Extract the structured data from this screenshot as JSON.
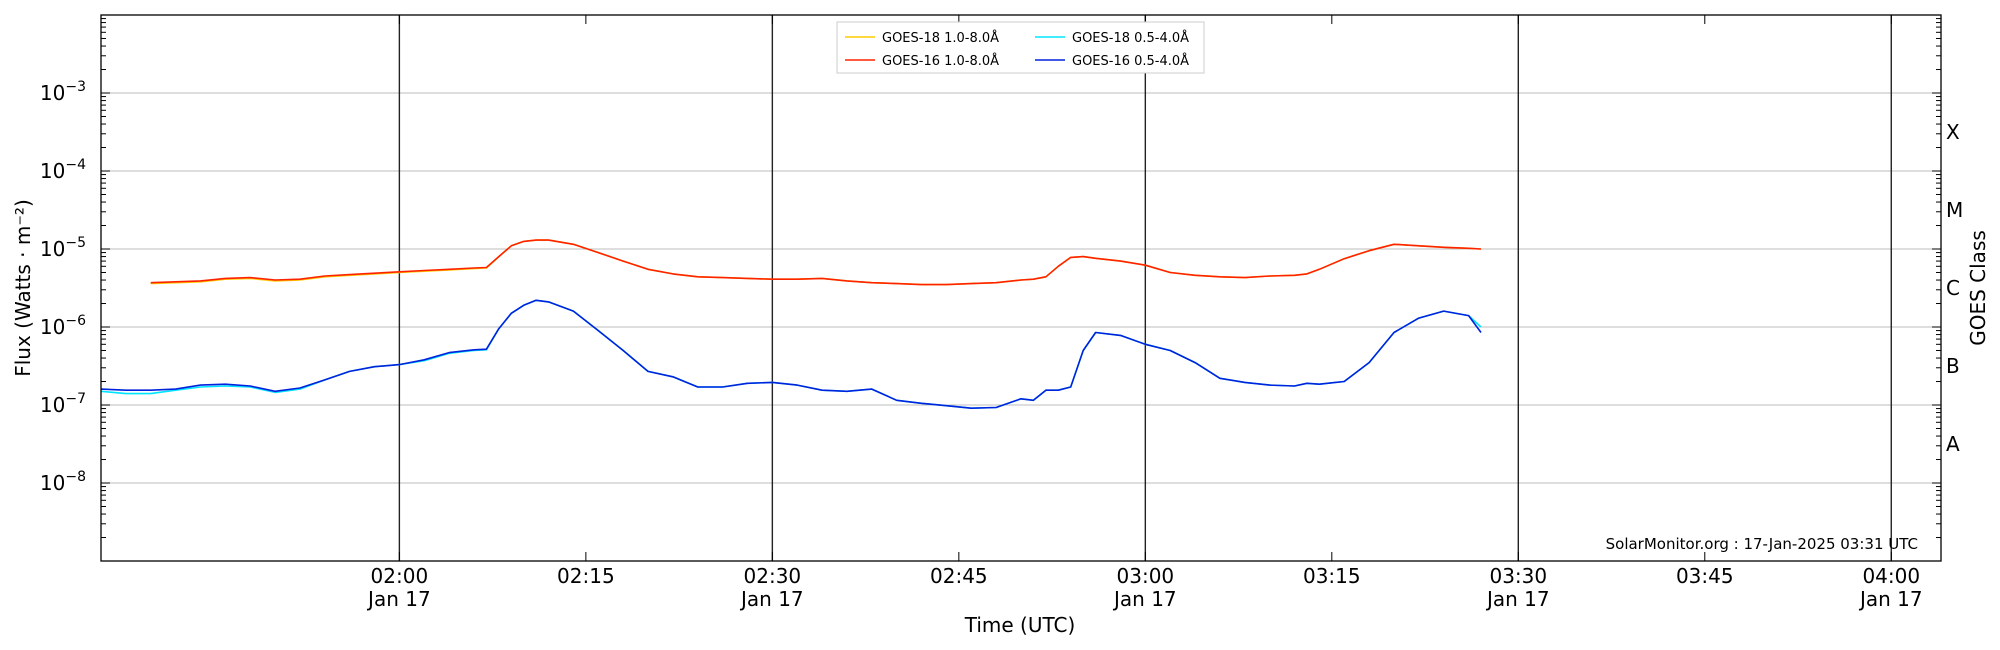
{
  "chart_data": {
    "type": "line",
    "xlabel": "Time (UTC)",
    "ylabel": "Flux (Watts · m⁻²)",
    "y2label": "GOES Class",
    "x_range": [
      "01:36",
      "04:04"
    ],
    "y_scale": "log",
    "ylim": [
      1e-09,
      0.01
    ],
    "grid": "horizontal at each decade",
    "legend_position": "top-center",
    "credit": "SolarMonitor.org : 17-Jan-2025 03:31 UTC",
    "x_ticks": [
      {
        "t": "02:00",
        "label": "02:00",
        "date": "Jan 17",
        "vline": true
      },
      {
        "t": "02:15",
        "label": "02:15",
        "date": "",
        "vline": false
      },
      {
        "t": "02:30",
        "label": "02:30",
        "date": "Jan 17",
        "vline": true
      },
      {
        "t": "02:45",
        "label": "02:45",
        "date": "",
        "vline": false
      },
      {
        "t": "03:00",
        "label": "03:00",
        "date": "Jan 17",
        "vline": true
      },
      {
        "t": "03:15",
        "label": "03:15",
        "date": "",
        "vline": false
      },
      {
        "t": "03:30",
        "label": "03:30",
        "date": "Jan 17",
        "vline": true
      },
      {
        "t": "03:45",
        "label": "03:45",
        "date": "",
        "vline": false
      },
      {
        "t": "04:00",
        "label": "04:00",
        "date": "Jan 17",
        "vline": true
      }
    ],
    "y_ticks": [
      {
        "exp": -8,
        "label": "10",
        "sup": "−8"
      },
      {
        "exp": -7,
        "label": "10",
        "sup": "−7"
      },
      {
        "exp": -6,
        "label": "10",
        "sup": "−6"
      },
      {
        "exp": -5,
        "label": "10",
        "sup": "−5"
      },
      {
        "exp": -4,
        "label": "10",
        "sup": "−4"
      },
      {
        "exp": -3,
        "label": "10",
        "sup": "−3"
      }
    ],
    "goes_classes": [
      {
        "label": "A",
        "exp": -7.5
      },
      {
        "label": "B",
        "exp": -6.5
      },
      {
        "label": "C",
        "exp": -5.5
      },
      {
        "label": "M",
        "exp": -4.5
      },
      {
        "label": "X",
        "exp": -3.5
      }
    ],
    "series": [
      {
        "name": "GOES-18 1.0-8.0Å",
        "color": "#ffcc00",
        "x": [
          "01:40",
          "01:42",
          "01:44",
          "01:46",
          "01:48",
          "01:50",
          "01:52",
          "01:54",
          "01:56",
          "01:58",
          "02:00",
          "02:02",
          "02:04",
          "02:06",
          "02:07",
          "02:08",
          "02:09",
          "02:10",
          "02:11",
          "02:12",
          "02:14",
          "02:16",
          "02:18",
          "02:20",
          "02:22",
          "02:24",
          "02:26",
          "02:28",
          "02:30",
          "02:32",
          "02:34",
          "02:36",
          "02:38",
          "02:40",
          "02:42",
          "02:44",
          "02:46",
          "02:48",
          "02:50",
          "02:51",
          "02:52",
          "02:53",
          "02:54",
          "02:55",
          "02:56",
          "02:58",
          "03:00",
          "03:02",
          "03:04",
          "03:06",
          "03:08",
          "03:10",
          "03:12",
          "03:13",
          "03:14",
          "03:16",
          "03:18",
          "03:20",
          "03:22",
          "03:24",
          "03:26",
          "03:27"
        ],
        "y": [
          3.6e-06,
          3.7e-06,
          3.8e-06,
          4.1e-06,
          4.2e-06,
          3.9e-06,
          4e-06,
          4.4e-06,
          4.6e-06,
          4.8e-06,
          5e-06,
          5.2e-06,
          5.4e-06,
          5.6e-06,
          5.7e-06,
          8e-06,
          1.1e-05,
          1.25e-05,
          1.3e-05,
          1.3e-05,
          1.15e-05,
          9e-06,
          7e-06,
          5.5e-06,
          4.8e-06,
          4.4e-06,
          4.3e-06,
          4.2e-06,
          4.1e-06,
          4.1e-06,
          4.2e-06,
          3.9e-06,
          3.7e-06,
          3.6e-06,
          3.5e-06,
          3.5e-06,
          3.6e-06,
          3.7e-06,
          4e-06,
          4.1e-06,
          4.4e-06,
          6e-06,
          7.8e-06,
          8e-06,
          7.6e-06,
          7e-06,
          6.2e-06,
          5e-06,
          4.6e-06,
          4.4e-06,
          4.3e-06,
          4.5e-06,
          4.6e-06,
          4.8e-06,
          5.5e-06,
          7.5e-06,
          9.5e-06,
          1.15e-05,
          1.1e-05,
          1.05e-05,
          1.02e-05,
          1e-05
        ]
      },
      {
        "name": "GOES-16 1.0-8.0Å",
        "color": "#ff2200",
        "x": [
          "01:40",
          "01:42",
          "01:44",
          "01:46",
          "01:48",
          "01:50",
          "01:52",
          "01:54",
          "01:56",
          "01:58",
          "02:00",
          "02:02",
          "02:04",
          "02:06",
          "02:07",
          "02:08",
          "02:09",
          "02:10",
          "02:11",
          "02:12",
          "02:14",
          "02:16",
          "02:18",
          "02:20",
          "02:22",
          "02:24",
          "02:26",
          "02:28",
          "02:30",
          "02:32",
          "02:34",
          "02:36",
          "02:38",
          "02:40",
          "02:42",
          "02:44",
          "02:46",
          "02:48",
          "02:50",
          "02:51",
          "02:52",
          "02:53",
          "02:54",
          "02:55",
          "02:56",
          "02:58",
          "03:00",
          "03:02",
          "03:04",
          "03:06",
          "03:08",
          "03:10",
          "03:12",
          "03:13",
          "03:14",
          "03:16",
          "03:18",
          "03:20",
          "03:22",
          "03:24",
          "03:26",
          "03:27"
        ],
        "y": [
          3.7e-06,
          3.8e-06,
          3.9e-06,
          4.2e-06,
          4.3e-06,
          4e-06,
          4.1e-06,
          4.5e-06,
          4.7e-06,
          4.9e-06,
          5.1e-06,
          5.3e-06,
          5.5e-06,
          5.7e-06,
          5.8e-06,
          8e-06,
          1.1e-05,
          1.25e-05,
          1.3e-05,
          1.3e-05,
          1.15e-05,
          9e-06,
          7e-06,
          5.5e-06,
          4.8e-06,
          4.4e-06,
          4.3e-06,
          4.2e-06,
          4.1e-06,
          4.1e-06,
          4.2e-06,
          3.9e-06,
          3.7e-06,
          3.6e-06,
          3.5e-06,
          3.5e-06,
          3.6e-06,
          3.7e-06,
          4e-06,
          4.1e-06,
          4.4e-06,
          6e-06,
          7.8e-06,
          8e-06,
          7.6e-06,
          7e-06,
          6.2e-06,
          5e-06,
          4.6e-06,
          4.4e-06,
          4.3e-06,
          4.5e-06,
          4.6e-06,
          4.8e-06,
          5.5e-06,
          7.5e-06,
          9.5e-06,
          1.15e-05,
          1.1e-05,
          1.05e-05,
          1.02e-05,
          1e-05
        ]
      },
      {
        "name": "GOES-18 0.5-4.0Å",
        "color": "#00e5ff",
        "x": [
          "01:36",
          "01:38",
          "01:40",
          "01:42",
          "01:44",
          "01:46",
          "01:48",
          "01:50",
          "01:52",
          "01:54",
          "01:56",
          "01:58",
          "02:00",
          "02:02",
          "02:04",
          "02:06",
          "02:07",
          "02:08",
          "02:09",
          "02:10",
          "02:11",
          "02:12",
          "02:14",
          "02:16",
          "02:18",
          "02:20",
          "02:22",
          "02:24",
          "02:26",
          "02:28",
          "02:30",
          "02:32",
          "02:34",
          "02:36",
          "02:38",
          "02:40",
          "02:42",
          "02:44",
          "02:46",
          "02:48",
          "02:50",
          "02:51",
          "02:52",
          "02:53",
          "02:54",
          "02:55",
          "02:56",
          "02:58",
          "03:00",
          "03:02",
          "03:04",
          "03:06",
          "03:08",
          "03:10",
          "03:12",
          "03:13",
          "03:14",
          "03:16",
          "03:18",
          "03:20",
          "03:22",
          "03:24",
          "03:26",
          "03:27"
        ],
        "y": [
          1.5e-07,
          1.4e-07,
          1.4e-07,
          1.55e-07,
          1.7e-07,
          1.75e-07,
          1.7e-07,
          1.45e-07,
          1.6e-07,
          2.1e-07,
          2.7e-07,
          3.1e-07,
          3.3e-07,
          3.7e-07,
          4.6e-07,
          5e-07,
          5.1e-07,
          9.5e-07,
          1.5e-06,
          1.9e-06,
          2.2e-06,
          2.1e-06,
          1.6e-06,
          9e-07,
          5e-07,
          2.7e-07,
          2.3e-07,
          1.7e-07,
          1.7e-07,
          1.9e-07,
          1.95e-07,
          1.8e-07,
          1.55e-07,
          1.5e-07,
          1.6e-07,
          1.15e-07,
          1.05e-07,
          9.8e-08,
          9.1e-08,
          9.3e-08,
          1.2e-07,
          1.15e-07,
          1.55e-07,
          1.55e-07,
          1.7e-07,
          5e-07,
          8.5e-07,
          7.8e-07,
          6e-07,
          5e-07,
          3.5e-07,
          2.2e-07,
          1.95e-07,
          1.8e-07,
          1.75e-07,
          1.9e-07,
          1.85e-07,
          2e-07,
          3.5e-07,
          8.5e-07,
          1.3e-06,
          1.6e-06,
          1.4e-06,
          1e-06
        ]
      },
      {
        "name": "GOES-16 0.5-4.0Å",
        "color": "#0022dd",
        "x": [
          "01:36",
          "01:38",
          "01:40",
          "01:42",
          "01:44",
          "01:46",
          "01:48",
          "01:50",
          "01:52",
          "01:54",
          "01:56",
          "01:58",
          "02:00",
          "02:02",
          "02:04",
          "02:06",
          "02:07",
          "02:08",
          "02:09",
          "02:10",
          "02:11",
          "02:12",
          "02:14",
          "02:16",
          "02:18",
          "02:20",
          "02:22",
          "02:24",
          "02:26",
          "02:28",
          "02:30",
          "02:32",
          "02:34",
          "02:36",
          "02:38",
          "02:40",
          "02:42",
          "02:44",
          "02:46",
          "02:48",
          "02:50",
          "02:51",
          "02:52",
          "02:53",
          "02:54",
          "02:55",
          "02:56",
          "02:58",
          "03:00",
          "03:02",
          "03:04",
          "03:06",
          "03:08",
          "03:10",
          "03:12",
          "03:13",
          "03:14",
          "03:16",
          "03:18",
          "03:20",
          "03:22",
          "03:24",
          "03:26",
          "03:27"
        ],
        "y": [
          1.6e-07,
          1.55e-07,
          1.55e-07,
          1.6e-07,
          1.8e-07,
          1.85e-07,
          1.75e-07,
          1.5e-07,
          1.65e-07,
          2.1e-07,
          2.7e-07,
          3.1e-07,
          3.3e-07,
          3.8e-07,
          4.7e-07,
          5.1e-07,
          5.2e-07,
          9.5e-07,
          1.5e-06,
          1.9e-06,
          2.2e-06,
          2.1e-06,
          1.6e-06,
          9e-07,
          5e-07,
          2.7e-07,
          2.3e-07,
          1.7e-07,
          1.7e-07,
          1.9e-07,
          1.95e-07,
          1.8e-07,
          1.55e-07,
          1.5e-07,
          1.6e-07,
          1.15e-07,
          1.05e-07,
          9.8e-08,
          9.1e-08,
          9.3e-08,
          1.2e-07,
          1.15e-07,
          1.55e-07,
          1.55e-07,
          1.7e-07,
          5e-07,
          8.5e-07,
          7.8e-07,
          6e-07,
          5e-07,
          3.5e-07,
          2.2e-07,
          1.95e-07,
          1.8e-07,
          1.75e-07,
          1.9e-07,
          1.85e-07,
          2e-07,
          3.5e-07,
          8.5e-07,
          1.3e-06,
          1.6e-06,
          1.4e-06,
          8.5e-07
        ]
      }
    ]
  }
}
